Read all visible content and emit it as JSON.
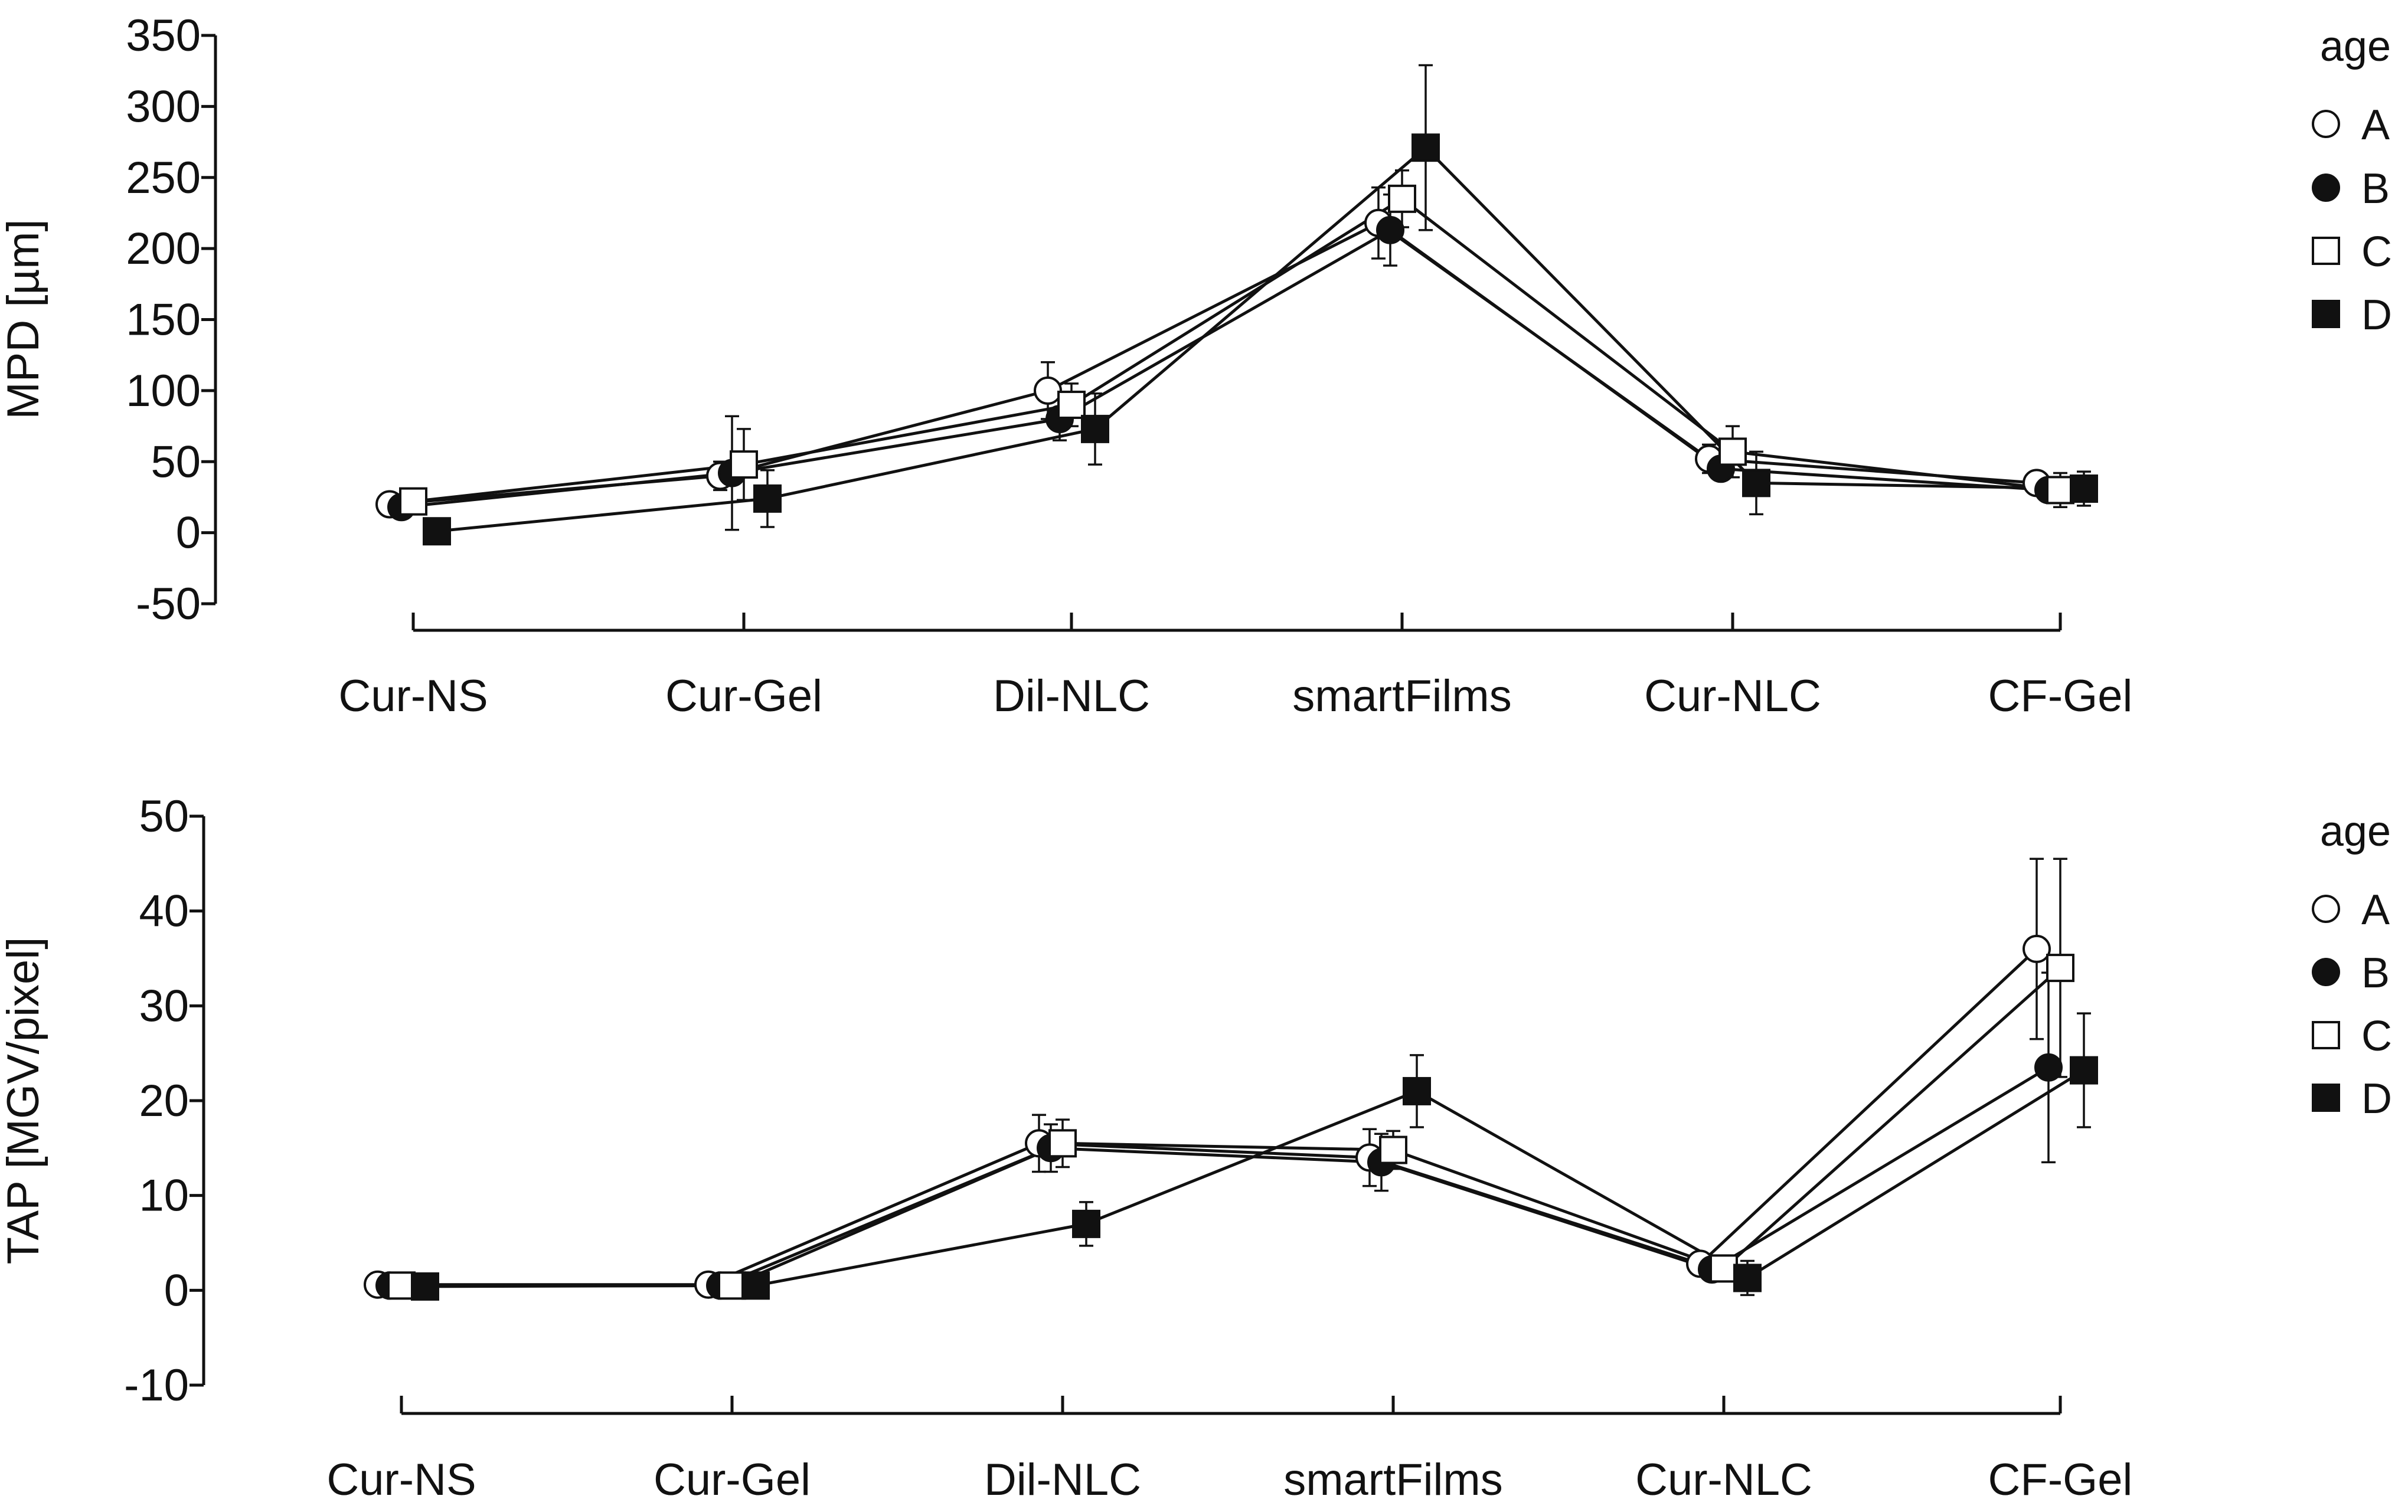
{
  "colors": {
    "ink": "#111111",
    "open_fill": "#ffffff",
    "background": "#ffffff"
  },
  "chart_data": [
    {
      "type": "line",
      "ylabel": "MPD [µm]",
      "xlabel": "",
      "categories": [
        "Cur-NS",
        "Cur-Gel",
        "Dil-NLC",
        "smartFilms",
        "Cur-NLC",
        "CF-Gel"
      ],
      "ylim": [
        -50,
        350
      ],
      "yticks": [
        -50,
        0,
        50,
        100,
        150,
        200,
        250,
        300,
        350
      ],
      "legend": {
        "title": "age",
        "position": "right"
      },
      "series": [
        {
          "name": "A",
          "marker": "circle-open",
          "values": [
            20,
            40,
            100,
            218,
            52,
            35
          ],
          "errors": [
            5,
            10,
            20,
            25,
            10,
            5
          ]
        },
        {
          "name": "B",
          "marker": "circle-filled",
          "values": [
            18,
            42,
            80,
            213,
            45,
            30
          ],
          "errors": [
            6,
            40,
            15,
            25,
            8,
            8
          ]
        },
        {
          "name": "C",
          "marker": "square-open",
          "values": [
            22,
            48,
            90,
            235,
            57,
            30
          ],
          "errors": [
            6,
            25,
            15,
            20,
            18,
            12
          ]
        },
        {
          "name": "D",
          "marker": "square-filled",
          "values": [
            1,
            24,
            73,
            271,
            35,
            31
          ],
          "errors": [
            3,
            20,
            25,
            58,
            22,
            12
          ]
        }
      ]
    },
    {
      "type": "line",
      "ylabel": "TAP [MGV/pixel]",
      "xlabel": "",
      "categories": [
        "Cur-NS",
        "Cur-Gel",
        "Dil-NLC",
        "smartFilms",
        "Cur-NLC",
        "CF-Gel"
      ],
      "ylim": [
        -10,
        50
      ],
      "yticks": [
        -10,
        0,
        10,
        20,
        30,
        40,
        50
      ],
      "legend": {
        "title": "age",
        "position": "right"
      },
      "series": [
        {
          "name": "A",
          "marker": "circle-open",
          "values": [
            0.6,
            0.6,
            15.5,
            14,
            2.8,
            36
          ],
          "errors": [
            0.3,
            0.3,
            3,
            3,
            0.5,
            9.5
          ]
        },
        {
          "name": "B",
          "marker": "circle-filled",
          "values": [
            0.5,
            0.5,
            15,
            13.5,
            2.2,
            23.5
          ],
          "errors": [
            0.3,
            0.3,
            2.5,
            3,
            0.5,
            10
          ]
        },
        {
          "name": "C",
          "marker": "square-open",
          "values": [
            0.5,
            0.5,
            15.5,
            14.8,
            2.3,
            34
          ],
          "errors": [
            0.3,
            0.3,
            2.5,
            2,
            0.8,
            11.5
          ]
        },
        {
          "name": "D",
          "marker": "square-filled",
          "values": [
            0.4,
            0.5,
            7,
            21,
            1.3,
            23.2
          ],
          "errors": [
            0.3,
            0.3,
            2.3,
            3.8,
            1.8,
            6
          ]
        }
      ]
    }
  ]
}
